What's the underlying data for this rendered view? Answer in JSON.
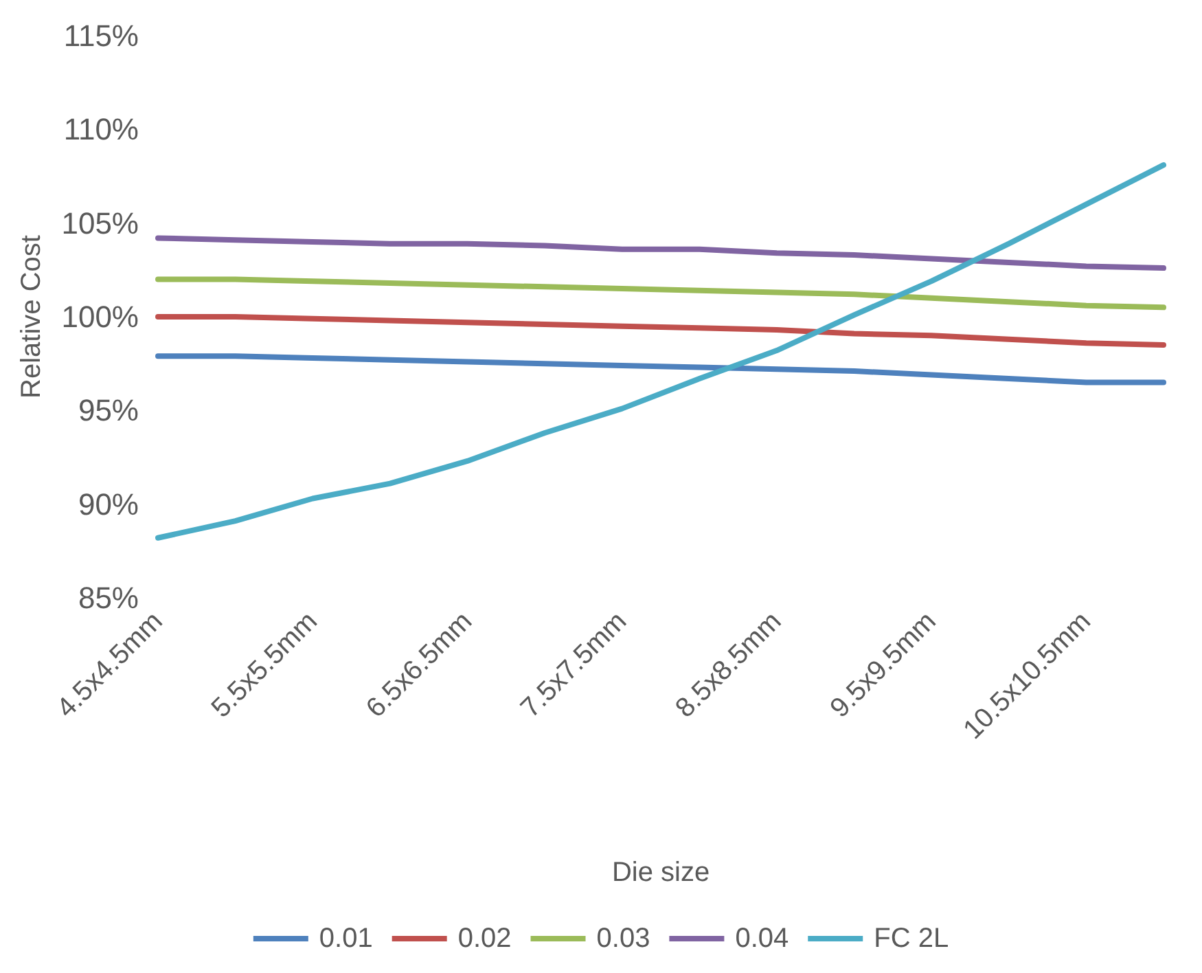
{
  "chart_data": {
    "type": "line",
    "xlabel": "Die size",
    "ylabel": "Relative Cost",
    "categories": [
      "4.5x4.5mm",
      null,
      "5.5x5.5mm",
      null,
      "6.5x6.5mm",
      null,
      "7.5x7.5mm",
      null,
      "8.5x8.5mm",
      null,
      "9.5x9.5mm",
      null,
      "10.5x10.5mm",
      null
    ],
    "series": [
      {
        "name": "0.01",
        "color": "#4e81bd",
        "values": [
          97.9,
          97.9,
          97.8,
          97.7,
          97.6,
          97.5,
          97.4,
          97.3,
          97.2,
          97.1,
          96.9,
          96.7,
          96.5,
          96.5
        ]
      },
      {
        "name": "0.02",
        "color": "#c0504d",
        "values": [
          100.0,
          100.0,
          99.9,
          99.8,
          99.7,
          99.6,
          99.5,
          99.4,
          99.3,
          99.1,
          99.0,
          98.8,
          98.6,
          98.5
        ]
      },
      {
        "name": "0.03",
        "color": "#9bbb59",
        "values": [
          102.0,
          102.0,
          101.9,
          101.8,
          101.7,
          101.6,
          101.5,
          101.4,
          101.3,
          101.2,
          101.0,
          100.8,
          100.6,
          100.5
        ]
      },
      {
        "name": "0.04",
        "color": "#8064a2",
        "values": [
          104.2,
          104.1,
          104.0,
          103.9,
          103.9,
          103.8,
          103.6,
          103.6,
          103.4,
          103.3,
          103.1,
          102.9,
          102.7,
          102.6
        ]
      },
      {
        "name": "FC 2L",
        "color": "#4bacc6",
        "values": [
          88.2,
          89.1,
          90.3,
          91.1,
          92.3,
          93.8,
          95.1,
          96.7,
          98.2,
          100.1,
          101.9,
          103.9,
          106.0,
          108.1
        ]
      }
    ],
    "ylim": [
      85,
      115
    ],
    "yticks": [
      {
        "value": 85,
        "label": "85%"
      },
      {
        "value": 90,
        "label": "90%"
      },
      {
        "value": 95,
        "label": "95%"
      },
      {
        "value": 100,
        "label": "100%"
      },
      {
        "value": 105,
        "label": "105%"
      },
      {
        "value": 110,
        "label": "110%"
      },
      {
        "value": 115,
        "label": "115%"
      }
    ],
    "grid": false,
    "legend": "bottom",
    "marker": "none",
    "line_style": "solid"
  }
}
